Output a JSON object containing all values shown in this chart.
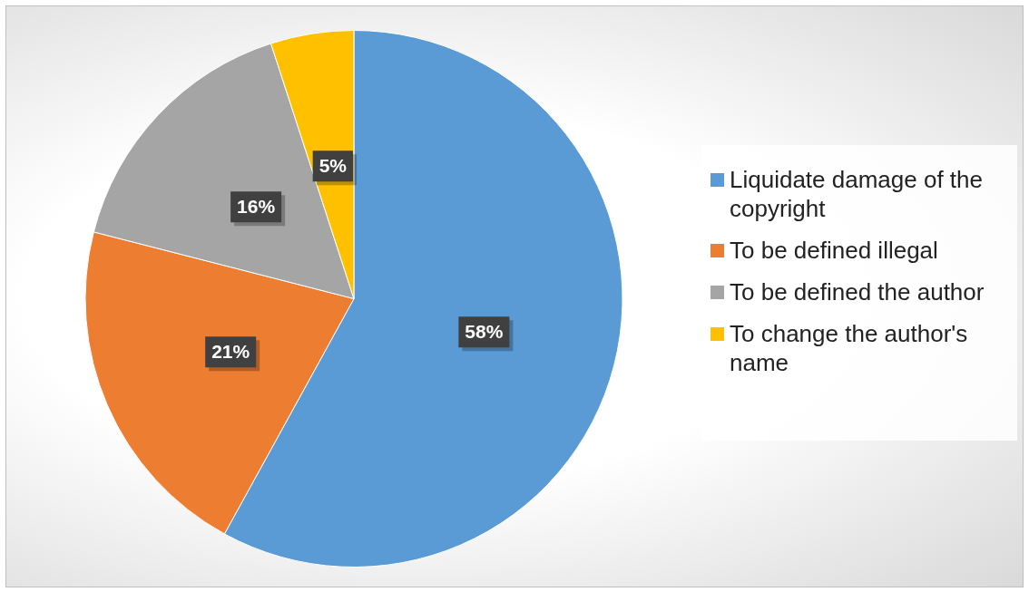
{
  "chart_data": {
    "type": "pie",
    "categories": [
      "Liquidate damage of the copyright",
      "To be defined illegal",
      "To be defined the author",
      "To change the author's name"
    ],
    "values": [
      58,
      21,
      16,
      5
    ],
    "colors": [
      "#5b9bd5",
      "#ed7d31",
      "#a5a5a5",
      "#ffc000"
    ],
    "value_labels": [
      "58%",
      "21%",
      "16%",
      "5%"
    ],
    "legend": "right"
  }
}
